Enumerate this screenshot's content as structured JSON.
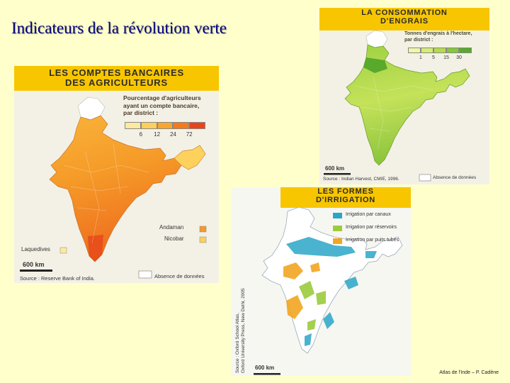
{
  "slide_title": "Indicateurs de la révolution verte",
  "credit": "Atlas de l'Inde – P. Cadène",
  "panels": {
    "bank": {
      "banner_line1": "LES COMPTES BANCAIRES",
      "banner_line2": "DES AGRICULTEURS",
      "legend_title_1": "Pourcentage d'agriculteurs",
      "legend_title_2": "ayant un compte bancaire,",
      "legend_title_3": "par district :",
      "legend_ticks": [
        "6",
        "12",
        "24",
        "72"
      ],
      "legend_colors": [
        "#fde9a0",
        "#fcd05a",
        "#f9a62c",
        "#f47a1a",
        "#e8441a"
      ],
      "island_1": "Andaman",
      "island_2": "Nicobar",
      "island_3": "Laquedives",
      "scale_label": "600 km",
      "source": "Source : Reserve Bank of India.",
      "no_data": "Absence de données"
    },
    "fertilizer": {
      "banner_line1": "LA CONSOMMATION",
      "banner_line2": "D'ENGRAIS",
      "legend_title_1": "Tonnes d'engrais à l'hectare,",
      "legend_title_2": "par district :",
      "legend_ticks": [
        "1",
        "5",
        "15",
        "30"
      ],
      "legend_colors": [
        "#eef7a8",
        "#d6ec72",
        "#b4dc48",
        "#86c73a",
        "#58a92c"
      ],
      "scale_label": "600 km",
      "source": "Source : Indian Harvest, CMIE, 1996.",
      "no_data": "Absence de données"
    },
    "irrigation": {
      "banner_line1": "LES FORMES",
      "banner_line2": "D'IRRIGATION",
      "legend_items": [
        {
          "label": "Irrigation par canaux",
          "color": "#2aa6c8"
        },
        {
          "label": "Irrigation par réservoirs",
          "color": "#9ccc3c"
        },
        {
          "label": "Irrigation par puits tubés",
          "color": "#f2a622"
        }
      ],
      "source_vertical_1": "Source : Oxford School Atlas,",
      "source_vertical_2": "Oxford University Press, New Delhi, 2005",
      "scale_label": "600 km"
    }
  }
}
